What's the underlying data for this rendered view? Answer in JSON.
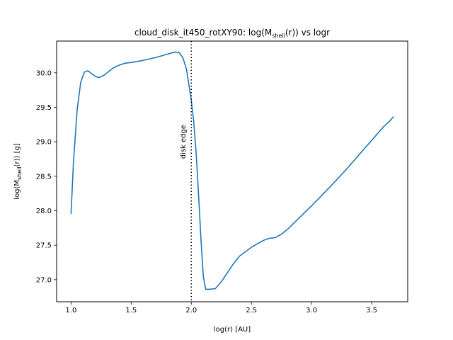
{
  "chart_data": {
    "type": "line",
    "title": {
      "prefix": "cloud_disk_it450_rotXY90: log(M",
      "sub": "shell",
      "suffix": "(r)) vs logr"
    },
    "xlabel": "log(r) [AU]",
    "ylabel": {
      "prefix": "log(M",
      "sub": "shell",
      "suffix": "(r)) [g]"
    },
    "xlim": [
      0.88,
      3.8
    ],
    "ylim": [
      26.68,
      30.46
    ],
    "xticks": [
      1.0,
      1.5,
      2.0,
      2.5,
      3.0,
      3.5
    ],
    "xtick_labels": [
      "1.0",
      "1.5",
      "2.0",
      "2.5",
      "3.0",
      "3.5"
    ],
    "yticks": [
      27.0,
      27.5,
      28.0,
      28.5,
      29.0,
      29.5,
      30.0
    ],
    "ytick_labels": [
      "27.0",
      "27.5",
      "28.0",
      "28.5",
      "29.0",
      "29.5",
      "30.0"
    ],
    "grid": false,
    "series": [
      {
        "color": "#1f77b4",
        "x": [
          1.0,
          1.02,
          1.05,
          1.08,
          1.11,
          1.14,
          1.17,
          1.2,
          1.23,
          1.27,
          1.3,
          1.35,
          1.4,
          1.45,
          1.5,
          1.6,
          1.7,
          1.8,
          1.84,
          1.87,
          1.9,
          1.93,
          1.96,
          1.98,
          2.0,
          2.02,
          2.04,
          2.06,
          2.08,
          2.1,
          2.12,
          2.15,
          2.2,
          2.25,
          2.3,
          2.35,
          2.4,
          2.5,
          2.6,
          2.65,
          2.7,
          2.75,
          2.8,
          2.9,
          3.0,
          3.1,
          3.2,
          3.3,
          3.4,
          3.5,
          3.6,
          3.65,
          3.68
        ],
        "y": [
          27.96,
          28.7,
          29.45,
          29.86,
          30.01,
          30.03,
          29.99,
          29.95,
          29.93,
          29.96,
          30.0,
          30.07,
          30.11,
          30.14,
          30.15,
          30.18,
          30.22,
          30.27,
          30.29,
          30.3,
          30.29,
          30.22,
          30.05,
          29.83,
          29.6,
          29.3,
          28.85,
          28.25,
          27.6,
          27.05,
          26.86,
          26.86,
          26.87,
          26.97,
          27.1,
          27.23,
          27.34,
          27.47,
          27.57,
          27.6,
          27.61,
          27.66,
          27.73,
          27.9,
          28.07,
          28.25,
          28.43,
          28.62,
          28.82,
          29.02,
          29.22,
          29.3,
          29.36
        ]
      }
    ],
    "vline": {
      "x": 2.0,
      "label": "disk edge",
      "label_y": 29.0
    }
  }
}
